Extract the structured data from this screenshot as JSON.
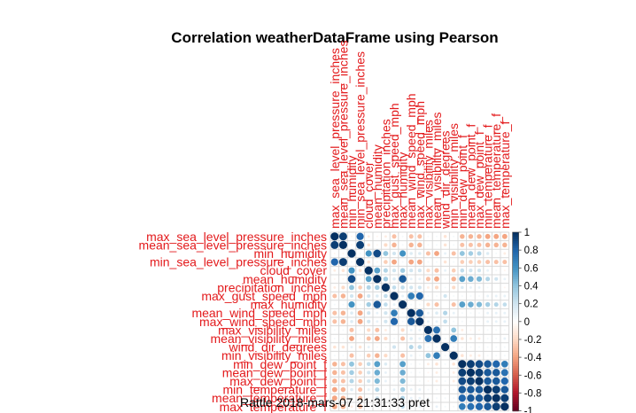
{
  "window": {
    "title": "Correlation weatherDataFrame using Pearson"
  },
  "footer": {
    "caption": "Rattle 2018-mars-07 21:31:33 pret"
  },
  "chart_data": {
    "type": "heatmap",
    "title": "Correlation weatherDataFrame using Pearson",
    "method": "Pearson",
    "variables": [
      "max_sea_level_pressure_inches",
      "mean_sea_level_pressure_inches",
      "min_humidity",
      "min_sea_level_pressure_inches",
      "cloud_cover",
      "mean_humidity",
      "precipitation_inches",
      "max_gust_speed_mph",
      "max_humidity",
      "mean_wind_speed_mph",
      "max_wind_speed_mph",
      "max_visibility_miles",
      "mean_visibility_miles",
      "wind_dir_degrees",
      "min_visibility_miles",
      "min_dew_point_f",
      "mean_dew_point_f",
      "max_dew_point_f",
      "min_temperature_f",
      "mean_temperature_f",
      "max_temperature_f"
    ],
    "matrix": [
      [
        1.0,
        0.95,
        -0.05,
        0.8,
        -0.1,
        -0.05,
        -0.1,
        -0.3,
        0.05,
        -0.3,
        -0.3,
        0.05,
        0.05,
        -0.15,
        0.05,
        -0.35,
        -0.35,
        -0.35,
        -0.4,
        -0.4,
        -0.4
      ],
      [
        0.95,
        1.0,
        -0.05,
        0.95,
        -0.15,
        -0.05,
        -0.2,
        -0.35,
        0.05,
        -0.35,
        -0.35,
        0.05,
        0.05,
        -0.15,
        0.05,
        -0.3,
        -0.3,
        -0.3,
        -0.35,
        -0.35,
        -0.35
      ],
      [
        -0.05,
        -0.05,
        1.0,
        0.05,
        0.6,
        0.9,
        0.4,
        0.2,
        0.6,
        0.15,
        0.15,
        -0.3,
        -0.4,
        0.1,
        -0.3,
        0.4,
        0.35,
        0.3,
        0.15,
        0.05,
        -0.1
      ],
      [
        0.8,
        0.95,
        0.05,
        1.0,
        -0.15,
        -0.05,
        -0.25,
        -0.4,
        0.05,
        -0.4,
        -0.4,
        0.05,
        0.05,
        -0.15,
        0.05,
        -0.25,
        -0.25,
        -0.25,
        -0.3,
        -0.3,
        -0.3
      ],
      [
        -0.1,
        -0.15,
        0.6,
        -0.15,
        1.0,
        0.55,
        0.3,
        0.2,
        0.35,
        0.2,
        0.2,
        -0.2,
        -0.3,
        0.1,
        -0.25,
        0.25,
        0.2,
        0.2,
        0.1,
        0.05,
        -0.05
      ],
      [
        -0.05,
        -0.05,
        0.9,
        -0.05,
        0.55,
        1.0,
        0.35,
        0.15,
        0.85,
        0.1,
        0.1,
        -0.3,
        -0.4,
        0.05,
        -0.35,
        0.55,
        0.5,
        0.45,
        0.3,
        0.2,
        0.1
      ],
      [
        -0.1,
        -0.2,
        0.4,
        -0.25,
        0.3,
        0.35,
        1.0,
        0.25,
        0.25,
        0.2,
        0.2,
        -0.1,
        -0.2,
        0.05,
        -0.2,
        0.15,
        0.1,
        0.1,
        0.05,
        0.0,
        -0.05
      ],
      [
        -0.3,
        -0.35,
        0.2,
        -0.4,
        0.2,
        0.15,
        0.25,
        1.0,
        0.1,
        0.7,
        0.8,
        0.05,
        0.05,
        0.2,
        0.05,
        0.05,
        0.05,
        0.05,
        0.1,
        0.1,
        0.1
      ],
      [
        0.05,
        0.05,
        0.6,
        0.05,
        0.35,
        0.85,
        0.25,
        0.1,
        1.0,
        0.05,
        0.05,
        -0.2,
        -0.3,
        0.0,
        -0.3,
        0.55,
        0.5,
        0.45,
        0.35,
        0.3,
        0.25
      ],
      [
        -0.3,
        -0.35,
        0.15,
        -0.4,
        0.2,
        0.1,
        0.2,
        0.7,
        0.05,
        1.0,
        0.85,
        0.1,
        0.15,
        0.3,
        0.1,
        0.05,
        0.05,
        0.05,
        0.1,
        0.1,
        0.1
      ],
      [
        -0.3,
        -0.35,
        0.15,
        -0.4,
        0.2,
        0.1,
        0.2,
        0.8,
        0.05,
        0.85,
        1.0,
        0.1,
        0.1,
        0.25,
        0.05,
        0.05,
        0.05,
        0.05,
        0.1,
        0.1,
        0.1
      ],
      [
        0.05,
        0.05,
        -0.3,
        0.05,
        -0.2,
        -0.3,
        -0.1,
        0.05,
        -0.2,
        0.1,
        0.1,
        1.0,
        0.75,
        0.05,
        0.4,
        -0.1,
        -0.05,
        -0.05,
        0.05,
        0.05,
        0.05
      ],
      [
        0.05,
        0.05,
        -0.4,
        0.05,
        -0.3,
        -0.4,
        -0.2,
        0.05,
        -0.3,
        0.15,
        0.1,
        0.75,
        1.0,
        0.05,
        0.7,
        -0.15,
        -0.1,
        -0.1,
        0.05,
        0.05,
        0.1
      ],
      [
        -0.15,
        -0.15,
        0.1,
        -0.15,
        0.1,
        0.05,
        0.05,
        0.2,
        0.0,
        0.3,
        0.25,
        0.05,
        0.05,
        1.0,
        0.05,
        0.05,
        0.05,
        0.05,
        0.05,
        0.05,
        0.05
      ],
      [
        0.05,
        0.05,
        -0.3,
        0.05,
        -0.25,
        -0.35,
        -0.2,
        0.05,
        -0.3,
        0.1,
        0.05,
        0.4,
        0.7,
        0.05,
        1.0,
        -0.15,
        -0.1,
        -0.1,
        0.05,
        0.05,
        0.05
      ],
      [
        -0.35,
        -0.3,
        0.4,
        -0.25,
        0.25,
        0.55,
        0.15,
        0.05,
        0.55,
        0.05,
        0.05,
        -0.1,
        -0.15,
        0.05,
        -0.15,
        1.0,
        0.95,
        0.9,
        0.85,
        0.8,
        0.7
      ],
      [
        -0.35,
        -0.3,
        0.35,
        -0.25,
        0.2,
        0.5,
        0.1,
        0.05,
        0.5,
        0.05,
        0.05,
        -0.05,
        -0.1,
        0.05,
        -0.1,
        0.95,
        1.0,
        0.95,
        0.85,
        0.85,
        0.75
      ],
      [
        -0.35,
        -0.3,
        0.3,
        -0.25,
        0.2,
        0.45,
        0.1,
        0.05,
        0.45,
        0.05,
        0.05,
        -0.05,
        -0.1,
        0.05,
        -0.1,
        0.9,
        0.95,
        1.0,
        0.85,
        0.85,
        0.8
      ],
      [
        -0.4,
        -0.35,
        0.15,
        -0.3,
        0.1,
        0.3,
        0.05,
        0.1,
        0.35,
        0.1,
        0.1,
        0.05,
        0.05,
        0.05,
        0.05,
        0.85,
        0.85,
        0.85,
        1.0,
        0.95,
        0.85
      ],
      [
        -0.4,
        -0.35,
        0.05,
        -0.3,
        0.05,
        0.2,
        0.0,
        0.1,
        0.3,
        0.1,
        0.1,
        0.05,
        0.05,
        0.05,
        0.05,
        0.8,
        0.85,
        0.85,
        0.95,
        1.0,
        0.95
      ],
      [
        -0.4,
        -0.35,
        -0.1,
        -0.3,
        -0.05,
        0.1,
        -0.05,
        0.1,
        0.25,
        0.1,
        0.1,
        0.05,
        0.1,
        0.05,
        0.05,
        0.7,
        0.75,
        0.8,
        0.85,
        0.95,
        1.0
      ]
    ],
    "color_scale": {
      "range": [
        -1,
        1
      ],
      "ticks": [
        "1",
        "0.8",
        "0.6",
        "0.4",
        "0.2",
        "0",
        "-0.2",
        "-0.4",
        "-0.6",
        "-0.8",
        "-1"
      ],
      "colors": [
        "#67001f",
        "#b2182b",
        "#d6604d",
        "#f4a582",
        "#fddbc7",
        "#ffffff",
        "#d1e5f0",
        "#92c5de",
        "#4393c3",
        "#2166ac",
        "#053061"
      ]
    },
    "label_color": "#e31a1c",
    "grid": true
  }
}
